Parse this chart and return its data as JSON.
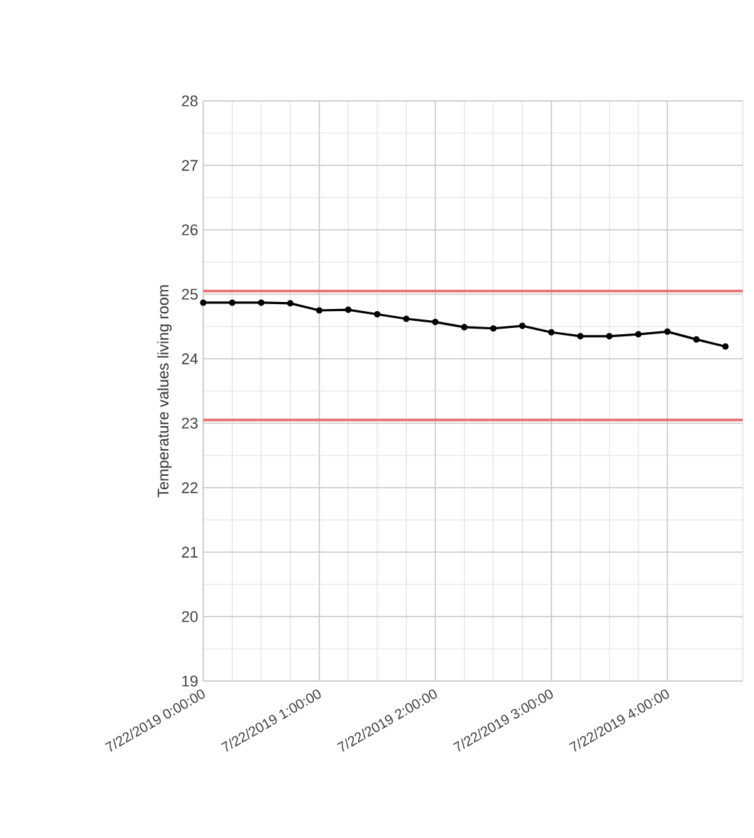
{
  "chart_data": {
    "type": "line",
    "ylabel": "Temperature values living room",
    "x": [
      "2019-07-22T00:00",
      "2019-07-22T00:15",
      "2019-07-22T00:30",
      "2019-07-22T00:45",
      "2019-07-22T01:00",
      "2019-07-22T01:15",
      "2019-07-22T01:30",
      "2019-07-22T01:45",
      "2019-07-22T02:00",
      "2019-07-22T02:15",
      "2019-07-22T02:30",
      "2019-07-22T02:45",
      "2019-07-22T03:00",
      "2019-07-22T03:15",
      "2019-07-22T03:30",
      "2019-07-22T03:45",
      "2019-07-22T04:00",
      "2019-07-22T04:15",
      "2019-07-22T04:30"
    ],
    "series": [
      {
        "color": "#000000",
        "values": [
          24.87,
          24.87,
          24.87,
          24.86,
          24.75,
          24.76,
          24.69,
          24.62,
          24.57,
          24.49,
          24.47,
          24.51,
          24.41,
          24.35,
          24.35,
          24.38,
          24.42,
          24.3,
          24.19
        ]
      }
    ],
    "xlim": [
      "2019-07-22T00:00",
      "2019-07-22T04:39"
    ],
    "xticks": [
      {
        "value": "2019-07-22T00:00",
        "label": "7/22/2019 0:00:00"
      },
      {
        "value": "2019-07-22T01:00",
        "label": "7/22/2019 1:00:00"
      },
      {
        "value": "2019-07-22T02:00",
        "label": "7/22/2019 2:00:00"
      },
      {
        "value": "2019-07-22T03:00",
        "label": "7/22/2019 3:00:00"
      },
      {
        "value": "2019-07-22T04:00",
        "label": "7/22/2019 4:00:00"
      }
    ],
    "ylim": [
      19,
      28
    ],
    "yticks": [
      19,
      20,
      21,
      22,
      23,
      24,
      25,
      26,
      27,
      28
    ],
    "ref_lines": [
      {
        "axis": "y",
        "value": 25.05,
        "color": "#e57373"
      },
      {
        "axis": "y",
        "value": 23.05,
        "color": "#e57373"
      }
    ],
    "grid": true,
    "marker": "circle",
    "line_style": "solid"
  }
}
